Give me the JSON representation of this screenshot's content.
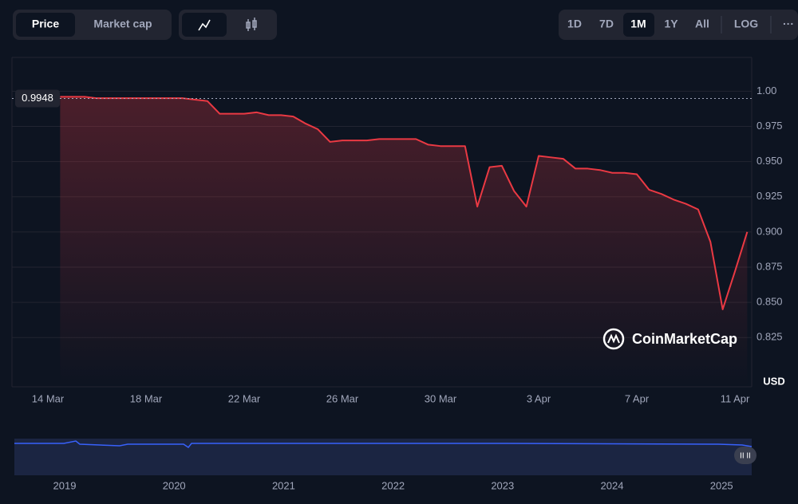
{
  "toolbar": {
    "price": "Price",
    "market_cap": "Market cap",
    "ranges": [
      "1D",
      "7D",
      "1M",
      "1Y",
      "All",
      "LOG"
    ],
    "more": "···"
  },
  "watermark": "CoinMarketCap",
  "currency": "USD",
  "navigator": {
    "years": [
      "2019",
      "2020",
      "2021",
      "2022",
      "2023",
      "2024",
      "2025"
    ]
  },
  "chart_data": {
    "type": "line",
    "categories": [
      "14 Mar",
      null,
      null,
      null,
      null,
      null,
      null,
      null,
      "18 Mar",
      null,
      null,
      null,
      null,
      null,
      null,
      null,
      "22 Mar",
      null,
      null,
      null,
      null,
      null,
      null,
      null,
      "26 Mar",
      null,
      null,
      null,
      null,
      null,
      null,
      null,
      "30 Mar",
      null,
      null,
      null,
      null,
      null,
      null,
      null,
      "3 Apr",
      null,
      null,
      null,
      null,
      null,
      null,
      null,
      "7 Apr",
      null,
      null,
      null,
      null,
      null,
      null,
      null,
      "11 Apr",
      null
    ],
    "series": [
      {
        "name": "Price",
        "color": "#ea3943",
        "values": [
          null,
          0.996,
          0.996,
          0.996,
          0.995,
          0.995,
          0.995,
          0.995,
          0.995,
          0.995,
          0.995,
          0.995,
          0.994,
          0.993,
          0.984,
          0.984,
          0.984,
          0.985,
          0.983,
          0.983,
          0.982,
          0.977,
          0.973,
          0.964,
          0.965,
          0.965,
          0.965,
          0.966,
          0.966,
          0.966,
          0.966,
          0.962,
          0.961,
          0.961,
          0.961,
          0.918,
          0.946,
          0.947,
          0.929,
          0.918,
          0.954,
          0.953,
          0.952,
          0.945,
          0.945,
          0.944,
          0.942,
          0.942,
          0.941,
          0.93,
          0.927,
          0.923,
          0.92,
          0.916,
          0.893,
          0.845,
          0.872,
          0.9
        ]
      }
    ],
    "current_price": 0.9948,
    "ylim": [
      0.79,
      1.024
    ],
    "yticks": [
      {
        "value": 1,
        "label": "1.00"
      },
      0.975,
      {
        "value": 0.95,
        "label": "0.950"
      },
      0.925,
      {
        "value": 0.9,
        "label": "0.900"
      },
      0.875,
      {
        "value": 0.85,
        "label": "0.850"
      },
      0.825
    ],
    "grid": true
  }
}
